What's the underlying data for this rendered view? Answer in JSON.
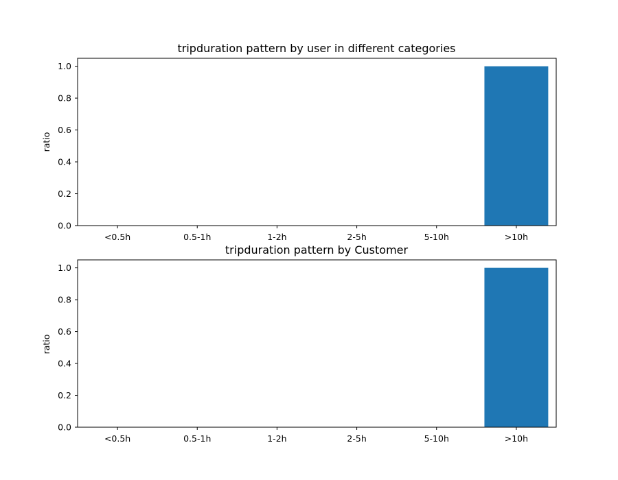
{
  "chart_data": [
    {
      "type": "bar",
      "title": "tripduration pattern by user in different categories",
      "xlabel": "",
      "ylabel": "ratio",
      "categories": [
        "<0.5h",
        "0.5-1h",
        "1-2h",
        "2-5h",
        "5-10h",
        ">10h"
      ],
      "values": [
        0,
        0,
        0,
        0,
        0,
        1.0
      ],
      "ylim": [
        0,
        1.05
      ],
      "yticks": [
        "0.0",
        "0.2",
        "0.4",
        "0.6",
        "0.8",
        "1.0"
      ],
      "grid": false,
      "bar_color": "#1f77b4"
    },
    {
      "type": "bar",
      "title": "tripduration pattern by Customer",
      "xlabel": "",
      "ylabel": "ratio",
      "categories": [
        "<0.5h",
        "0.5-1h",
        "1-2h",
        "2-5h",
        "5-10h",
        ">10h"
      ],
      "values": [
        0,
        0,
        0,
        0,
        0,
        1.0
      ],
      "ylim": [
        0,
        1.05
      ],
      "yticks": [
        "0.0",
        "0.2",
        "0.4",
        "0.6",
        "0.8",
        "1.0"
      ],
      "grid": false,
      "bar_color": "#1f77b4"
    }
  ]
}
